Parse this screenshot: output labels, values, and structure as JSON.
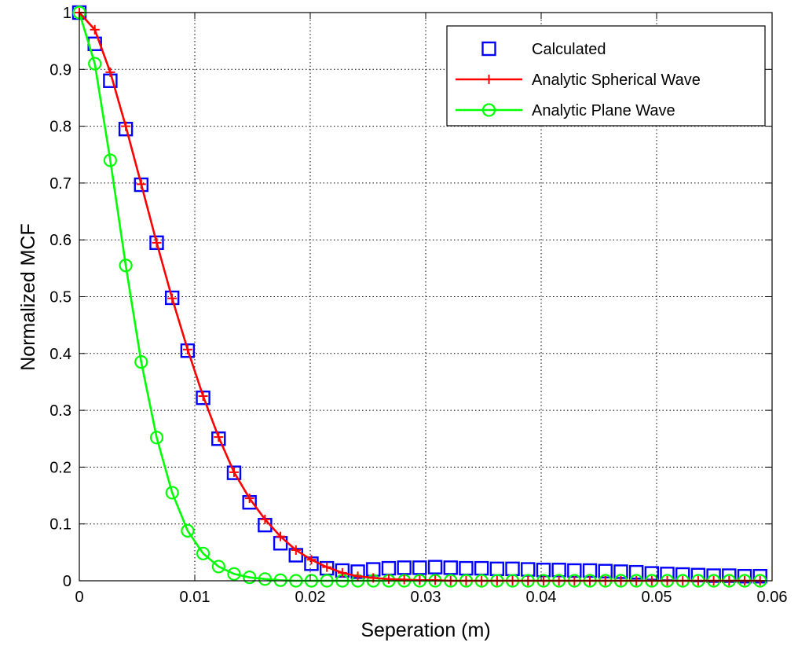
{
  "chart_data": {
    "type": "line",
    "xlabel": "Seperation (m)",
    "ylabel": "Normalized MCF",
    "xlim": [
      0,
      0.06
    ],
    "ylim": [
      0,
      1
    ],
    "xticks": [
      0,
      0.01,
      0.02,
      0.03,
      0.04,
      0.05,
      0.06
    ],
    "xtick_labels": [
      "0",
      "0.01",
      "0.02",
      "0.03",
      "0.04",
      "0.05",
      "0.06"
    ],
    "yticks": [
      0,
      0.1,
      0.2,
      0.3,
      0.4,
      0.5,
      0.6,
      0.7,
      0.8,
      0.9,
      1
    ],
    "ytick_labels": [
      "0",
      "0.1",
      "0.2",
      "0.3",
      "0.4",
      "0.5",
      "0.6",
      "0.7",
      "0.8",
      "0.9",
      "1"
    ],
    "grid": true,
    "legend_position": "top-right",
    "series": [
      {
        "name": "Calculated",
        "style": "square-markers",
        "color": "#0000ff",
        "x": [
          0,
          0.00134,
          0.00268,
          0.00402,
          0.00536,
          0.0067,
          0.00804,
          0.00938,
          0.01072,
          0.01206,
          0.0134,
          0.01474,
          0.01608,
          0.01742,
          0.01876,
          0.0201,
          0.02144,
          0.02278,
          0.02412,
          0.02546,
          0.0268,
          0.02814,
          0.02948,
          0.03082,
          0.03216,
          0.0335,
          0.03484,
          0.03618,
          0.03752,
          0.03886,
          0.0402,
          0.04154,
          0.04288,
          0.04422,
          0.04556,
          0.0469,
          0.04824,
          0.04958,
          0.05092,
          0.05226,
          0.0536,
          0.05494,
          0.05628,
          0.05762,
          0.05896
        ],
        "y": [
          1.0,
          0.945,
          0.88,
          0.795,
          0.697,
          0.595,
          0.498,
          0.405,
          0.322,
          0.25,
          0.19,
          0.138,
          0.098,
          0.066,
          0.045,
          0.03,
          0.022,
          0.018,
          0.016,
          0.02,
          0.022,
          0.023,
          0.023,
          0.024,
          0.023,
          0.022,
          0.022,
          0.021,
          0.021,
          0.02,
          0.019,
          0.019,
          0.018,
          0.018,
          0.017,
          0.016,
          0.015,
          0.013,
          0.012,
          0.011,
          0.01,
          0.009,
          0.009,
          0.008,
          0.008
        ]
      },
      {
        "name": "Analytic Spherical Wave",
        "style": "line-plus",
        "color": "#ff0000",
        "x": [
          0,
          0.00134,
          0.00268,
          0.00402,
          0.00536,
          0.0067,
          0.00804,
          0.00938,
          0.01072,
          0.01206,
          0.0134,
          0.01474,
          0.01608,
          0.01742,
          0.01876,
          0.0201,
          0.02144,
          0.02278,
          0.02412,
          0.02546,
          0.0268,
          0.02814,
          0.02948,
          0.03082,
          0.03216,
          0.0335,
          0.03484,
          0.03618,
          0.03752,
          0.03886,
          0.0402,
          0.04154,
          0.04288,
          0.04422,
          0.04556,
          0.0469,
          0.04824,
          0.04958,
          0.05092,
          0.05226,
          0.0536,
          0.05494,
          0.05628,
          0.05762,
          0.05896
        ],
        "y": [
          1.0,
          0.97,
          0.895,
          0.8,
          0.698,
          0.595,
          0.497,
          0.407,
          0.325,
          0.253,
          0.191,
          0.145,
          0.108,
          0.078,
          0.054,
          0.037,
          0.024,
          0.014,
          0.008,
          0.005,
          0.003,
          0.002,
          0.001,
          0.001,
          0.0,
          0.0,
          0.0,
          0.0,
          0.0,
          0.0,
          0.0,
          0.0,
          0.0,
          0.0,
          0.0,
          0.0,
          0.0,
          0.0,
          0.0,
          0.0,
          0.0,
          0.0,
          0.0,
          0.0,
          0.0
        ]
      },
      {
        "name": "Analytic Plane Wave",
        "style": "line-circle",
        "color": "#00ff00",
        "x": [
          0,
          0.00134,
          0.00268,
          0.00402,
          0.00536,
          0.0067,
          0.00804,
          0.00938,
          0.01072,
          0.01206,
          0.0134,
          0.01474,
          0.01608,
          0.01742,
          0.01876,
          0.0201,
          0.02144,
          0.02278,
          0.02412,
          0.02546,
          0.0268,
          0.02814,
          0.02948,
          0.03082,
          0.03216,
          0.0335,
          0.03484,
          0.03618,
          0.03752,
          0.03886,
          0.0402,
          0.04154,
          0.04288,
          0.04422,
          0.04556,
          0.0469,
          0.04824,
          0.04958,
          0.05092,
          0.05226,
          0.0536,
          0.05494,
          0.05628,
          0.05762,
          0.05896
        ],
        "y": [
          1.0,
          0.91,
          0.74,
          0.555,
          0.385,
          0.252,
          0.155,
          0.088,
          0.048,
          0.025,
          0.012,
          0.006,
          0.003,
          0.001,
          0.0,
          0.0,
          0.0,
          0.0,
          0.0,
          0.0,
          0.0,
          0.0,
          0.0,
          0.0,
          0.0,
          0.0,
          0.0,
          0.0,
          0.0,
          0.0,
          0.0,
          0.0,
          0.0,
          0.0,
          0.0,
          0.0,
          0.0,
          0.0,
          0.0,
          0.0,
          0.0,
          0.0,
          0.0,
          0.0,
          0.0
        ]
      }
    ]
  }
}
